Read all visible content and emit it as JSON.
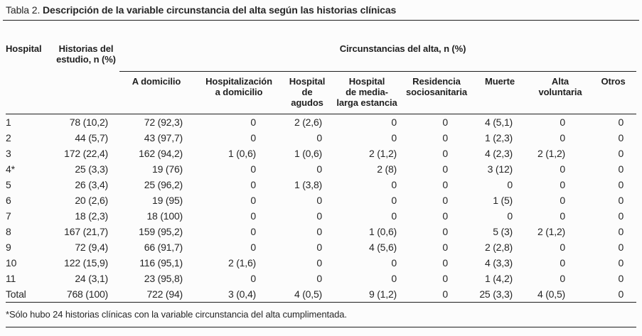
{
  "title": {
    "label": "Tabla 2.",
    "text": "Descripción de la variable circunstancia del alta según las historias clínicas"
  },
  "table": {
    "col_hospital": "Hospital",
    "col_historias": "Historias del\nestudio, n (%)",
    "group_header": "Circunstancias del alta, n (%)",
    "subcolumns": [
      "A domicilio",
      "Hospitalización\na domicilio",
      "Hospital\nde agudos",
      "Hospital\nde media-\nlarga estancia",
      "Residencia\nsociosanitaria",
      "Muerte",
      "Alta\nvoluntaria",
      "Otros"
    ],
    "rows": [
      [
        "1",
        "78 (10,2)",
        "72 (92,3)",
        "0",
        "2 (2,6)",
        "0",
        "0",
        "4 (5,1)",
        "0",
        "0"
      ],
      [
        "2",
        "44 (5,7)",
        "43 (97,7)",
        "0",
        "0",
        "0",
        "0",
        "1 (2,3)",
        "0",
        "0"
      ],
      [
        "3",
        "172 (22,4)",
        "162 (94,2)",
        "1 (0,6)",
        "1 (0,6)",
        "2 (1,2)",
        "0",
        "4 (2,3)",
        "2 (1,2)",
        "0"
      ],
      [
        "4*",
        "25 (3,3)",
        "19 (76)",
        "0",
        "0",
        "2 (8)",
        "0",
        "3 (12)",
        "0",
        "0"
      ],
      [
        "5",
        "26 (3,4)",
        "25 (96,2)",
        "0",
        "1 (3,8)",
        "0",
        "0",
        "0",
        "0",
        "0"
      ],
      [
        "6",
        "20 (2,6)",
        "19 (95)",
        "0",
        "0",
        "0",
        "0",
        "1 (5)",
        "0",
        "0"
      ],
      [
        "7",
        "18 (2,3)",
        "18 (100)",
        "0",
        "0",
        "0",
        "0",
        "0",
        "0",
        "0"
      ],
      [
        "8",
        "167 (21,7)",
        "159 (95,2)",
        "0",
        "0",
        "1 (0,6)",
        "0",
        "5 (3)",
        "2 (1,2)",
        "0"
      ],
      [
        "9",
        "72 (9,4)",
        "66 (91,7)",
        "0",
        "0",
        "4 (5,6)",
        "0",
        "2 (2,8)",
        "0",
        "0"
      ],
      [
        "10",
        "122 (15,9)",
        "116 (95,1)",
        "2 (1,6)",
        "0",
        "0",
        "0",
        "4 (3,3)",
        "0",
        "0"
      ],
      [
        "11",
        "24 (3,1)",
        "23 (95,8)",
        "0",
        "0",
        "0",
        "0",
        "1 (4,2)",
        "0",
        "0"
      ],
      [
        "Total",
        "768 (100)",
        "722 (94)",
        "3 (0,4)",
        "4 (0,5)",
        "9 (1,2)",
        "0",
        "25 (3,3)",
        "4 (0,5)",
        "0"
      ]
    ]
  },
  "footnote": "*Sólo hubo 24 historias clínicas con la variable circunstancia del alta cumplimentada."
}
